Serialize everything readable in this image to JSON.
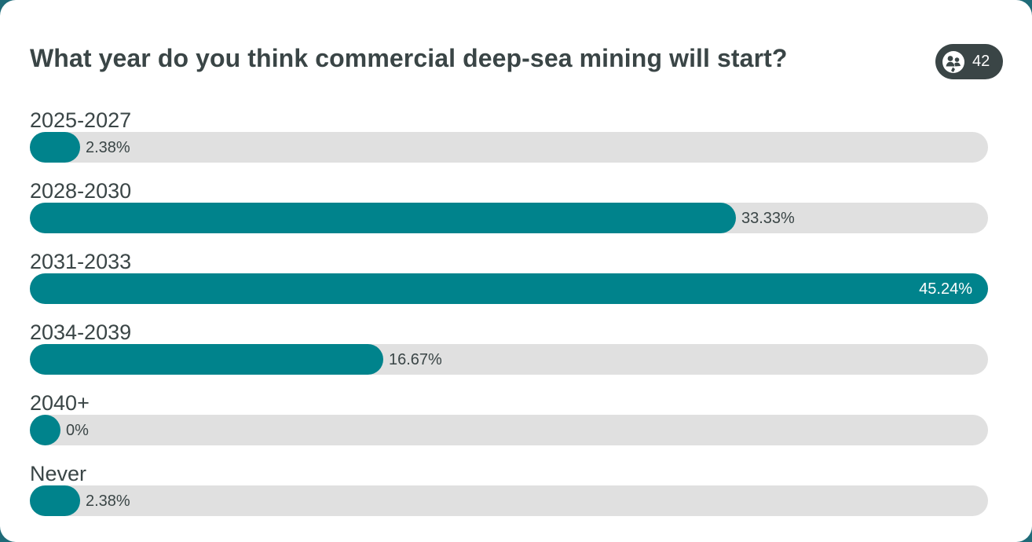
{
  "poll": {
    "question": "What year do you think commercial deep-sea mining will start?",
    "votes_icon": "participants-icon",
    "votes_count": "42",
    "bar_color": "#00838c",
    "track_color": "#e0e0e0",
    "options": [
      {
        "label": "2025-2027",
        "percent_label": "2.38%",
        "percent": 2.38
      },
      {
        "label": "2028-2030",
        "percent_label": "33.33%",
        "percent": 33.33
      },
      {
        "label": "2031-2033",
        "percent_label": "45.24%",
        "percent": 45.24
      },
      {
        "label": "2034-2039",
        "percent_label": "16.67%",
        "percent": 16.67
      },
      {
        "label": "2040+",
        "percent_label": "0%",
        "percent": 0
      },
      {
        "label": "Never",
        "percent_label": "2.38%",
        "percent": 2.38
      }
    ]
  }
}
